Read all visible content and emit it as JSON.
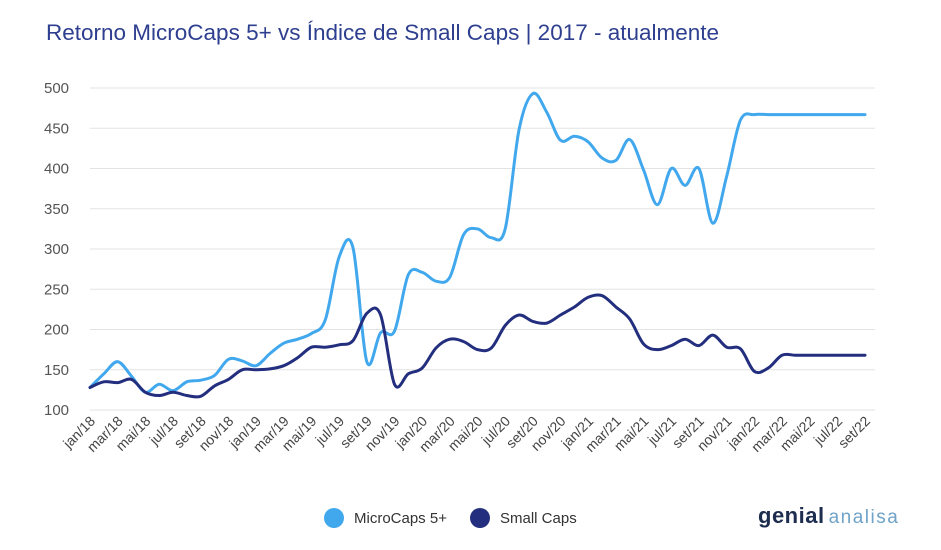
{
  "title": "Retorno MicroCaps 5+ vs Índice de Small Caps | 2017 - atualmente",
  "brand": {
    "main": "genial",
    "sub": "analisa"
  },
  "chart_data": {
    "type": "line",
    "title": "Retorno MicroCaps 5+ vs Índice de Small Caps | 2017 - atualmente",
    "ylim": [
      100,
      500
    ],
    "yticks": [
      100,
      150,
      200,
      250,
      300,
      350,
      400,
      450,
      500
    ],
    "grid": true,
    "legend_position": "bottom-center",
    "x": [
      "jan/18",
      "fev/18",
      "mar/18",
      "abr/18",
      "mai/18",
      "jun/18",
      "jul/18",
      "ago/18",
      "set/18",
      "out/18",
      "nov/18",
      "dez/18",
      "jan/19",
      "fev/19",
      "mar/19",
      "abr/19",
      "mai/19",
      "jun/19",
      "jul/19",
      "ago/19",
      "set/19",
      "out/19",
      "nov/19",
      "dez/19",
      "jan/20",
      "fev/20",
      "mar/20",
      "abr/20",
      "mai/20",
      "jun/20",
      "jul/20",
      "ago/20",
      "set/20",
      "out/20",
      "nov/20",
      "dez/20",
      "jan/21",
      "fev/21",
      "mar/21",
      "abr/21",
      "mai/21",
      "jun/21",
      "jul/21",
      "ago/21",
      "set/21",
      "out/21",
      "nov/21",
      "dez/21",
      "jan/22",
      "fev/22",
      "mar/22",
      "abr/22",
      "mai/22",
      "jun/22",
      "jul/22",
      "ago/22",
      "set/22"
    ],
    "x_tick_labels": [
      "jan/18",
      "mar/18",
      "mai/18",
      "jul/18",
      "set/18",
      "nov/18",
      "jan/19",
      "mar/19",
      "mai/19",
      "jul/19",
      "set/19",
      "nov/19",
      "jan/20",
      "mar/20",
      "mai/20",
      "jul/20",
      "set/20",
      "nov/20",
      "jan/21",
      "mar/21",
      "mai/21",
      "jul/21",
      "set/21",
      "nov/21",
      "jan/22",
      "mar/22",
      "mai/22",
      "jul/22",
      "set/22"
    ],
    "series": [
      {
        "name": "MicroCaps 5+",
        "color": "#41a8ee",
        "values": [
          128,
          145,
          160,
          142,
          122,
          132,
          124,
          135,
          137,
          143,
          163,
          161,
          155,
          170,
          183,
          188,
          195,
          212,
          290,
          302,
          160,
          196,
          198,
          268,
          271,
          260,
          265,
          318,
          325,
          314,
          325,
          448,
          493,
          470,
          435,
          440,
          433,
          413,
          410,
          436,
          398,
          355,
          400,
          379,
          400,
          332,
          390,
          460,
          467,
          467,
          467,
          467,
          467,
          467,
          467,
          467,
          467
        ]
      },
      {
        "name": "Small Caps",
        "color": "#232f7e",
        "values": [
          128,
          135,
          134,
          138,
          122,
          118,
          122,
          118,
          117,
          130,
          138,
          150,
          150,
          151,
          155,
          165,
          178,
          178,
          181,
          186,
          220,
          218,
          132,
          145,
          152,
          177,
          188,
          185,
          175,
          177,
          205,
          218,
          210,
          208,
          218,
          228,
          240,
          242,
          228,
          213,
          182,
          175,
          180,
          188,
          180,
          193,
          178,
          176,
          148,
          152,
          168,
          168,
          168,
          168,
          168,
          168,
          168
        ]
      }
    ]
  }
}
